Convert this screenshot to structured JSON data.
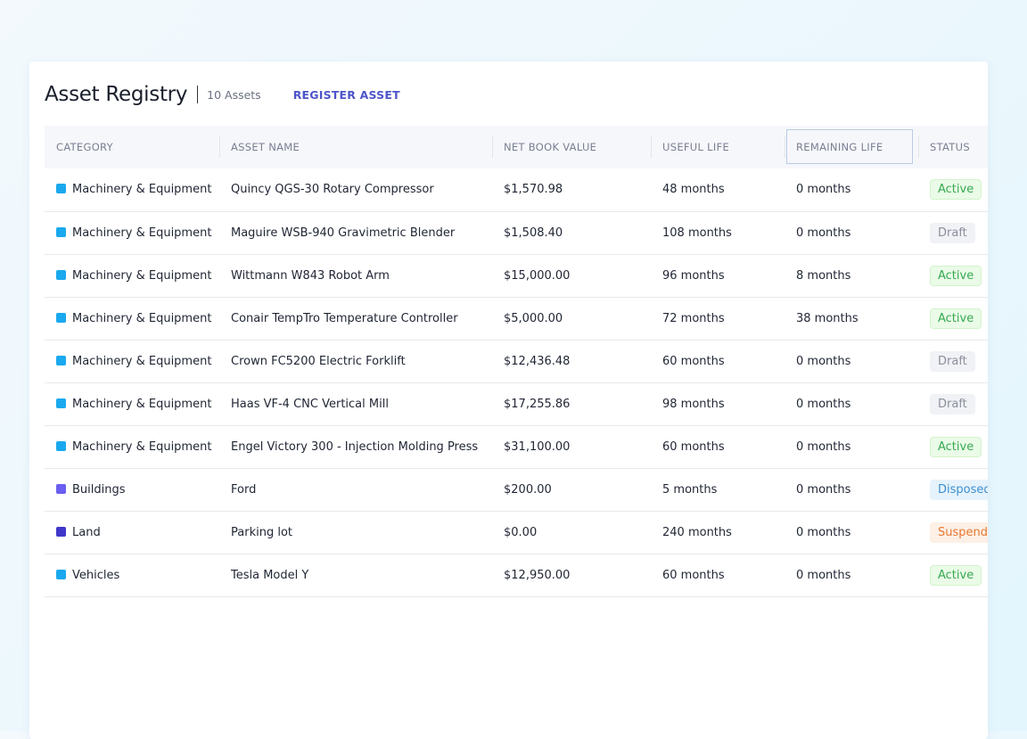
{
  "header": {
    "title": "Asset Registry",
    "count": "10 Assets",
    "register_label": "REGISTER ASSET"
  },
  "columns": [
    "CATEGORY",
    "ASSET NAME",
    "NET BOOK VALUE",
    "USEFUL LIFE",
    "REMAINING LIFE",
    "STATUS"
  ],
  "category_colors": {
    "Machinery & Equipment": "#1aa9ee",
    "Buildings": "#6a5ff0",
    "Land": "#3f37c9",
    "Vehicles": "#1aa9ee"
  },
  "status_styles": {
    "Active": {
      "bg": "#eafbe7",
      "border": "#d3f3cd",
      "color": "#36a852"
    },
    "Draft": {
      "bg": "#f1f2f5",
      "border": "#f1f2f5",
      "color": "#8a8f9c"
    },
    "Disposed": {
      "bg": "#e6f3fc",
      "border": "#e6f3fc",
      "color": "#3d8fd0"
    },
    "Suspended": {
      "bg": "#fdf0e6",
      "border": "#fdf0e6",
      "color": "#e9782f"
    }
  },
  "rows": [
    {
      "category": "Machinery & Equipment",
      "name": "Quincy QGS-30 Rotary Compressor",
      "nbv": "$1,570.98",
      "useful": "48 months",
      "remaining": "0 months",
      "status": "Active"
    },
    {
      "category": "Machinery & Equipment",
      "name": "Maguire WSB-940 Gravimetric Blender",
      "nbv": "$1,508.40",
      "useful": "108 months",
      "remaining": "0 months",
      "status": "Draft"
    },
    {
      "category": "Machinery & Equipment",
      "name": "Wittmann W843 Robot Arm",
      "nbv": "$15,000.00",
      "useful": "96 months",
      "remaining": "8 months",
      "status": "Active"
    },
    {
      "category": "Machinery & Equipment",
      "name": "Conair TempTro Temperature Controller",
      "nbv": "$5,000.00",
      "useful": "72 months",
      "remaining": "38 months",
      "status": "Active"
    },
    {
      "category": "Machinery & Equipment",
      "name": "Crown FC5200 Electric Forklift",
      "nbv": "$12,436.48",
      "useful": "60 months",
      "remaining": "0 months",
      "status": "Draft"
    },
    {
      "category": "Machinery & Equipment",
      "name": "Haas VF-4 CNC Vertical Mill",
      "nbv": "$17,255.86",
      "useful": "98 months",
      "remaining": "0 months",
      "status": "Draft"
    },
    {
      "category": "Machinery & Equipment",
      "name": "Engel Victory 300 - Injection Molding Press",
      "nbv": "$31,100.00",
      "useful": "60 months",
      "remaining": "0 months",
      "status": "Active"
    },
    {
      "category": "Buildings",
      "name": "Ford",
      "nbv": "$200.00",
      "useful": "5 months",
      "remaining": "0 months",
      "status": "Disposed"
    },
    {
      "category": "Land",
      "name": "Parking lot",
      "nbv": "$0.00",
      "useful": "240 months",
      "remaining": "0 months",
      "status": "Suspended"
    },
    {
      "category": "Vehicles",
      "name": "Tesla Model Y",
      "nbv": "$12,950.00",
      "useful": "60 months",
      "remaining": "0 months",
      "status": "Active"
    }
  ]
}
